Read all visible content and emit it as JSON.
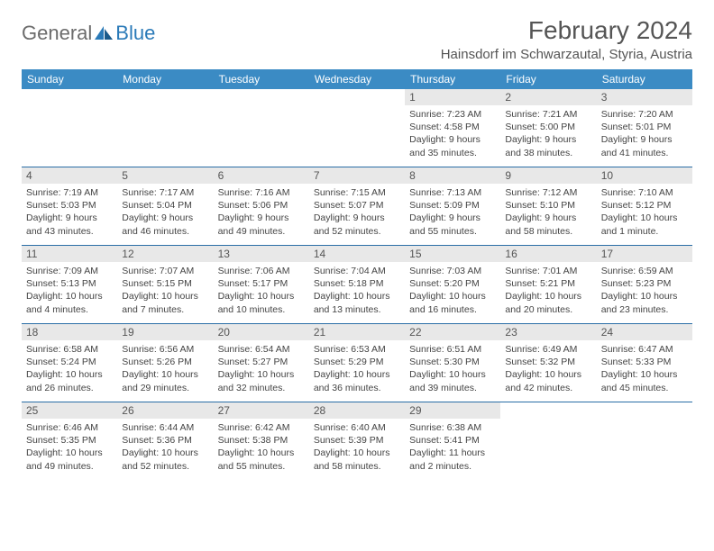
{
  "brand": {
    "part1": "General",
    "part2": "Blue"
  },
  "title": "February 2024",
  "location": "Hainsdorf im Schwarzautal, Styria, Austria",
  "colors": {
    "header_bg": "#3b8bc4",
    "header_text": "#ffffff",
    "week_border": "#2a6ea6",
    "daynum_bg": "#e8e8e8",
    "body_text": "#444444",
    "title_text": "#555555",
    "logo_gray": "#6b6b6b",
    "logo_blue": "#2a7ab8"
  },
  "dayNames": [
    "Sunday",
    "Monday",
    "Tuesday",
    "Wednesday",
    "Thursday",
    "Friday",
    "Saturday"
  ],
  "weeks": [
    [
      null,
      null,
      null,
      null,
      {
        "n": "1",
        "sr": "7:23 AM",
        "ss": "4:58 PM",
        "dl": "9 hours and 35 minutes."
      },
      {
        "n": "2",
        "sr": "7:21 AM",
        "ss": "5:00 PM",
        "dl": "9 hours and 38 minutes."
      },
      {
        "n": "3",
        "sr": "7:20 AM",
        "ss": "5:01 PM",
        "dl": "9 hours and 41 minutes."
      }
    ],
    [
      {
        "n": "4",
        "sr": "7:19 AM",
        "ss": "5:03 PM",
        "dl": "9 hours and 43 minutes."
      },
      {
        "n": "5",
        "sr": "7:17 AM",
        "ss": "5:04 PM",
        "dl": "9 hours and 46 minutes."
      },
      {
        "n": "6",
        "sr": "7:16 AM",
        "ss": "5:06 PM",
        "dl": "9 hours and 49 minutes."
      },
      {
        "n": "7",
        "sr": "7:15 AM",
        "ss": "5:07 PM",
        "dl": "9 hours and 52 minutes."
      },
      {
        "n": "8",
        "sr": "7:13 AM",
        "ss": "5:09 PM",
        "dl": "9 hours and 55 minutes."
      },
      {
        "n": "9",
        "sr": "7:12 AM",
        "ss": "5:10 PM",
        "dl": "9 hours and 58 minutes."
      },
      {
        "n": "10",
        "sr": "7:10 AM",
        "ss": "5:12 PM",
        "dl": "10 hours and 1 minute."
      }
    ],
    [
      {
        "n": "11",
        "sr": "7:09 AM",
        "ss": "5:13 PM",
        "dl": "10 hours and 4 minutes."
      },
      {
        "n": "12",
        "sr": "7:07 AM",
        "ss": "5:15 PM",
        "dl": "10 hours and 7 minutes."
      },
      {
        "n": "13",
        "sr": "7:06 AM",
        "ss": "5:17 PM",
        "dl": "10 hours and 10 minutes."
      },
      {
        "n": "14",
        "sr": "7:04 AM",
        "ss": "5:18 PM",
        "dl": "10 hours and 13 minutes."
      },
      {
        "n": "15",
        "sr": "7:03 AM",
        "ss": "5:20 PM",
        "dl": "10 hours and 16 minutes."
      },
      {
        "n": "16",
        "sr": "7:01 AM",
        "ss": "5:21 PM",
        "dl": "10 hours and 20 minutes."
      },
      {
        "n": "17",
        "sr": "6:59 AM",
        "ss": "5:23 PM",
        "dl": "10 hours and 23 minutes."
      }
    ],
    [
      {
        "n": "18",
        "sr": "6:58 AM",
        "ss": "5:24 PM",
        "dl": "10 hours and 26 minutes."
      },
      {
        "n": "19",
        "sr": "6:56 AM",
        "ss": "5:26 PM",
        "dl": "10 hours and 29 minutes."
      },
      {
        "n": "20",
        "sr": "6:54 AM",
        "ss": "5:27 PM",
        "dl": "10 hours and 32 minutes."
      },
      {
        "n": "21",
        "sr": "6:53 AM",
        "ss": "5:29 PM",
        "dl": "10 hours and 36 minutes."
      },
      {
        "n": "22",
        "sr": "6:51 AM",
        "ss": "5:30 PM",
        "dl": "10 hours and 39 minutes."
      },
      {
        "n": "23",
        "sr": "6:49 AM",
        "ss": "5:32 PM",
        "dl": "10 hours and 42 minutes."
      },
      {
        "n": "24",
        "sr": "6:47 AM",
        "ss": "5:33 PM",
        "dl": "10 hours and 45 minutes."
      }
    ],
    [
      {
        "n": "25",
        "sr": "6:46 AM",
        "ss": "5:35 PM",
        "dl": "10 hours and 49 minutes."
      },
      {
        "n": "26",
        "sr": "6:44 AM",
        "ss": "5:36 PM",
        "dl": "10 hours and 52 minutes."
      },
      {
        "n": "27",
        "sr": "6:42 AM",
        "ss": "5:38 PM",
        "dl": "10 hours and 55 minutes."
      },
      {
        "n": "28",
        "sr": "6:40 AM",
        "ss": "5:39 PM",
        "dl": "10 hours and 58 minutes."
      },
      {
        "n": "29",
        "sr": "6:38 AM",
        "ss": "5:41 PM",
        "dl": "11 hours and 2 minutes."
      },
      null,
      null
    ]
  ],
  "labels": {
    "sunrise": "Sunrise:",
    "sunset": "Sunset:",
    "daylight": "Daylight:"
  }
}
